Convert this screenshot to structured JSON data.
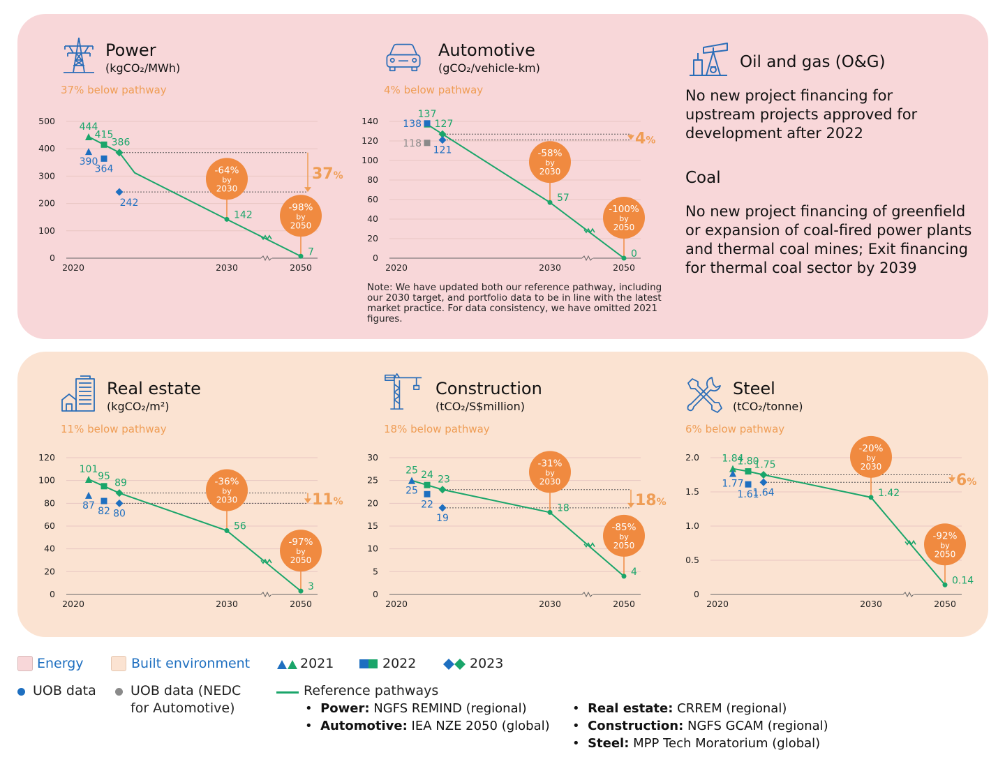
{
  "colors": {
    "energy_bg": "#f8d7d9",
    "built_bg": "#fbe3d2",
    "green": "#1aa56a",
    "blue": "#1e6fc0",
    "grey": "#8a8a8a",
    "orange": "#ef9d55",
    "bubble": "#f08a40"
  },
  "oil_gas": {
    "title": "Oil and gas (O&G)",
    "icon": "oil-pump-icon",
    "text": "No new project financing for upstream projects approved for development after 2022"
  },
  "coal": {
    "title": "Coal",
    "text": "No new project financing of greenfield or expansion of coal-fired power plants and thermal coal mines; Exit financing for thermal coal sector by 2039"
  },
  "note": "Note: We have updated both our reference pathway, including our 2030 target, and portfolio data to be in line with the latest market practice. For data consistency, we have omitted 2021 figures.",
  "legend": {
    "energy": "Energy",
    "built": "Built environment",
    "y2021": "2021",
    "y2022": "2022",
    "y2023": "2023",
    "uob": "UOB data",
    "uob_nedc_1": "UOB data (NEDC",
    "uob_nedc_2": "for Automotive)",
    "ref": "Reference pathways",
    "b1_bold": "Power:",
    "b1_text": " NGFS REMIND (regional)",
    "b2_bold": "Automotive:",
    "b2_text": " IEA NZE 2050 (global)",
    "b3_bold": "Real estate:",
    "b3_text": " CRREM (regional)",
    "b4_bold": "Construction:",
    "b4_text": " NGFS GCAM (regional)",
    "b5_bold": "Steel:",
    "b5_text": " MPP Tech Moratorium (global)"
  },
  "chart_data": [
    {
      "id": "power",
      "type": "line",
      "title": "Power",
      "unit": "(kgCO₂/MWh)",
      "icon": "transmission-tower-icon",
      "below": "37% below pathway",
      "yticks": [
        0,
        100,
        200,
        300,
        400,
        500
      ],
      "ylim": [
        0,
        500
      ],
      "xticks": [
        "2020",
        "2030",
        "2050"
      ],
      "pathway": [
        {
          "x": 2021,
          "y": 444
        },
        {
          "x": 2022,
          "y": 415
        },
        {
          "x": 2023,
          "y": 386
        },
        {
          "x": 2024,
          "y": 312
        },
        {
          "x": 2030,
          "y": 142
        },
        {
          "x": 2050,
          "y": 7
        }
      ],
      "pathway_labels": [
        "444",
        "415",
        "386",
        null,
        "142",
        "7"
      ],
      "uob": [
        {
          "year": 2021,
          "value": 390,
          "label": "390",
          "shape": "triangle",
          "color": "blue"
        },
        {
          "year": 2022,
          "value": 364,
          "label": "364",
          "shape": "square",
          "color": "blue"
        },
        {
          "year": 2023,
          "value": 242,
          "label": "242",
          "shape": "diamond",
          "color": "blue"
        }
      ],
      "gap": "37%",
      "bubbles": [
        {
          "pct": "-64%",
          "by": "by",
          "year": "2030"
        },
        {
          "pct": "-98%",
          "by": "by",
          "year": "2050"
        }
      ]
    },
    {
      "id": "automotive",
      "type": "line",
      "title": "Automotive",
      "unit": "(gCO₂/vehicle-km)",
      "icon": "car-icon",
      "below": "4% below pathway",
      "yticks": [
        0,
        20,
        40,
        60,
        80,
        100,
        120,
        140
      ],
      "ylim": [
        0,
        140
      ],
      "xticks": [
        "2020",
        "2030",
        "2050"
      ],
      "pathway": [
        {
          "x": 2022,
          "y": 137
        },
        {
          "x": 2023,
          "y": 127
        },
        {
          "x": 2030,
          "y": 57
        },
        {
          "x": 2050,
          "y": 0
        }
      ],
      "pathway_labels": [
        "137",
        "127",
        "57",
        "0"
      ],
      "uob": [
        {
          "year": 2022,
          "value": 138,
          "label": "138",
          "shape": "square",
          "color": "blue"
        },
        {
          "year": 2022,
          "value": 118,
          "label": "118",
          "shape": "square",
          "color": "grey"
        },
        {
          "year": 2023,
          "value": 121,
          "label": "121",
          "shape": "diamond",
          "color": "blue"
        }
      ],
      "gap": "4%",
      "bubbles": [
        {
          "pct": "-58%",
          "by": "by",
          "year": "2030"
        },
        {
          "pct": "-100%",
          "by": "by",
          "year": "2050"
        }
      ]
    },
    {
      "id": "real-estate",
      "type": "line",
      "title": "Real estate",
      "unit": "(kgCO₂/m²)",
      "icon": "building-icon",
      "below": "11% below pathway",
      "yticks": [
        0,
        20,
        40,
        60,
        80,
        100,
        120
      ],
      "ylim": [
        0,
        120
      ],
      "xticks": [
        "2020",
        "2030",
        "2050"
      ],
      "pathway": [
        {
          "x": 2021,
          "y": 101
        },
        {
          "x": 2022,
          "y": 95
        },
        {
          "x": 2023,
          "y": 89
        },
        {
          "x": 2030,
          "y": 56
        },
        {
          "x": 2050,
          "y": 3
        }
      ],
      "pathway_labels": [
        "101",
        "95",
        "89",
        "56",
        "3"
      ],
      "uob": [
        {
          "year": 2021,
          "value": 87,
          "label": "87",
          "shape": "triangle",
          "color": "blue"
        },
        {
          "year": 2022,
          "value": 82,
          "label": "82",
          "shape": "square",
          "color": "blue"
        },
        {
          "year": 2023,
          "value": 80,
          "label": "80",
          "shape": "diamond",
          "color": "blue"
        }
      ],
      "gap": "11%",
      "bubbles": [
        {
          "pct": "-36%",
          "by": "by",
          "year": "2030"
        },
        {
          "pct": "-97%",
          "by": "by",
          "year": "2050"
        }
      ]
    },
    {
      "id": "construction",
      "type": "line",
      "title": "Construction",
      "unit": "(tCO₂/S$million)",
      "icon": "crane-icon",
      "below": "18% below pathway",
      "yticks": [
        0,
        5,
        10,
        15,
        20,
        25,
        30
      ],
      "ylim": [
        0,
        30
      ],
      "xticks": [
        "2020",
        "2030",
        "2050"
      ],
      "pathway": [
        {
          "x": 2021,
          "y": 25
        },
        {
          "x": 2022,
          "y": 24
        },
        {
          "x": 2023,
          "y": 23
        },
        {
          "x": 2030,
          "y": 18
        },
        {
          "x": 2050,
          "y": 4
        }
      ],
      "pathway_labels": [
        "25",
        "24",
        "23",
        "18",
        "4"
      ],
      "uob": [
        {
          "year": 2021,
          "value": 25,
          "label": "25",
          "shape": "triangle",
          "color": "blue"
        },
        {
          "year": 2022,
          "value": 22,
          "label": "22",
          "shape": "square",
          "color": "blue"
        },
        {
          "year": 2023,
          "value": 19,
          "label": "19",
          "shape": "diamond",
          "color": "blue"
        }
      ],
      "gap": "18%",
      "bubbles": [
        {
          "pct": "-31%",
          "by": "by",
          "year": "2030"
        },
        {
          "pct": "-85%",
          "by": "by",
          "year": "2050"
        }
      ]
    },
    {
      "id": "steel",
      "type": "line",
      "title": "Steel",
      "unit": "(tCO₂/tonne)",
      "icon": "wrench-icon",
      "below": "6% below pathway",
      "yticks": [
        "0",
        "0.5",
        "1.0",
        "1.5",
        "2.0"
      ],
      "ylim": [
        0,
        2.0
      ],
      "xticks": [
        "2020",
        "2030",
        "2050"
      ],
      "pathway": [
        {
          "x": 2021,
          "y": 1.84
        },
        {
          "x": 2022,
          "y": 1.8
        },
        {
          "x": 2023,
          "y": 1.75
        },
        {
          "x": 2030,
          "y": 1.42
        },
        {
          "x": 2050,
          "y": 0.14
        }
      ],
      "pathway_labels": [
        "1.84",
        "1.80",
        "1.75",
        "1.42",
        "0.14"
      ],
      "uob": [
        {
          "year": 2021,
          "value": 1.77,
          "label": "1.77",
          "shape": "triangle",
          "color": "blue"
        },
        {
          "year": 2022,
          "value": 1.61,
          "label": "1.61",
          "shape": "square",
          "color": "blue"
        },
        {
          "year": 2023,
          "value": 1.64,
          "label": "1.64",
          "shape": "diamond",
          "color": "blue"
        }
      ],
      "gap": "6%",
      "bubbles": [
        {
          "pct": "-20%",
          "by": "by",
          "year": "2030"
        },
        {
          "pct": "-92%",
          "by": "by",
          "year": "2050"
        }
      ]
    }
  ]
}
